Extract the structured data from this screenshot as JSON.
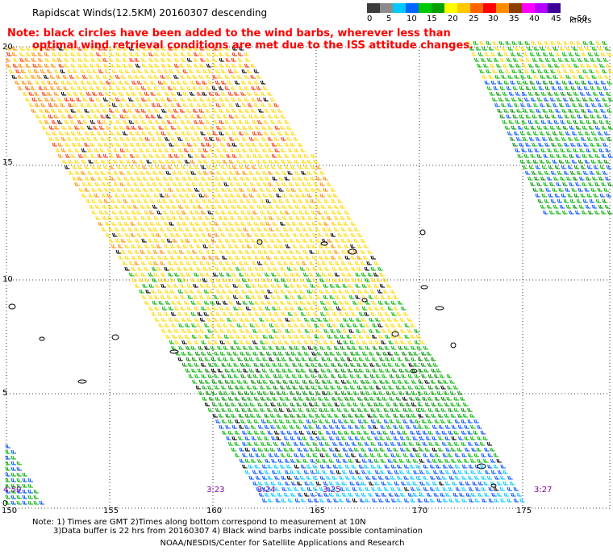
{
  "title": "Rapidscat Winds(12.5KM) 20160307 descending",
  "note": {
    "line1": "Note: black circles have been added to the wind barbs, wherever less than",
    "line2": "optimal wind retrieval conditions are met due to the ISS attitude changes."
  },
  "legend": {
    "colors": [
      "#3c3c3c",
      "#8c8c8c",
      "#00c8ff",
      "#0064ff",
      "#00c800",
      "#00a000",
      "#ffff00",
      "#ffc800",
      "#ff6400",
      "#ff0000",
      "#ff8c00",
      "#8c3c00",
      "#ff00ff",
      "#b400ff",
      "#3c0096"
    ],
    "ticks": [
      "0",
      "5",
      "10",
      "15",
      "20",
      "25",
      "30",
      "35",
      "40",
      "45",
      ">50"
    ],
    "units": "knots"
  },
  "axes": {
    "lon_labels": [
      "150",
      "155",
      "160",
      "165",
      "170",
      "175"
    ],
    "lat_labels": [
      "20",
      "15",
      "10",
      "5",
      "0"
    ]
  },
  "times": [
    "4:59",
    "3:23",
    "3:24",
    "3:25",
    "3:27"
  ],
  "footer": {
    "line1": "Note: 1) Times are GMT 2)Times along bottom correspond to measurement at 10N",
    "line2": "3)Data buffer is 22 hrs from 20160307 4) Black wind barbs indicate possible contamination",
    "line3": "NOAA/NESDIS/Center for Satellite Applications and Research"
  }
}
